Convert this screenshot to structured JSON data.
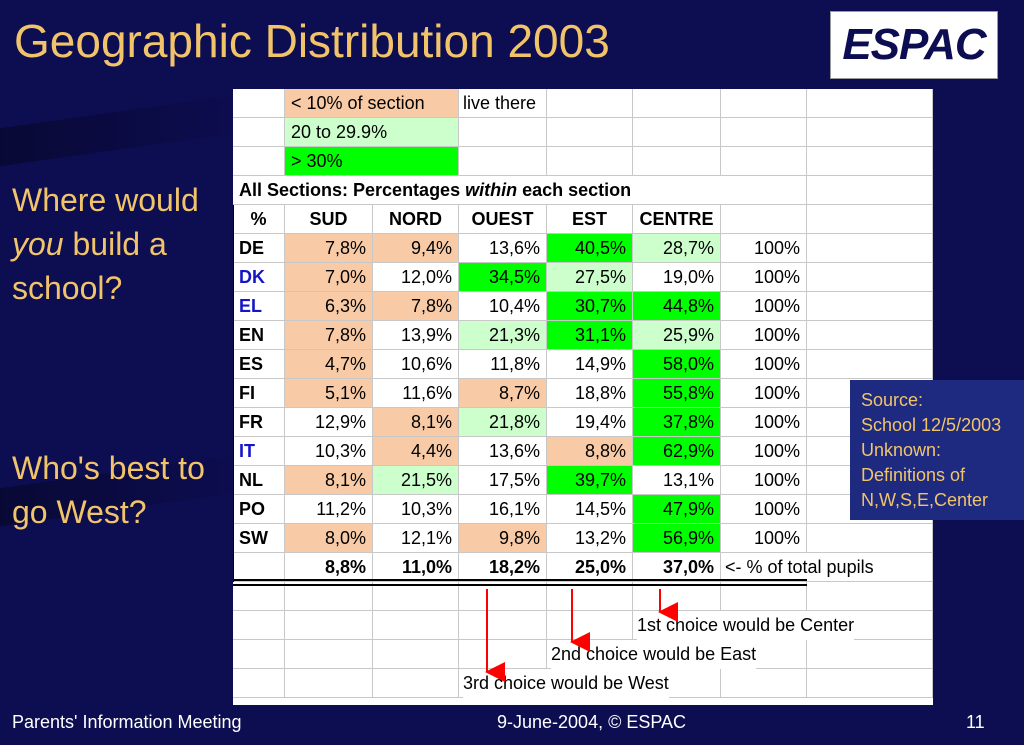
{
  "title": "Geographic Distribution 2003",
  "logo": "ESPAC",
  "question1": {
    "pre": "Where would ",
    "em": "you",
    "post": " build a school?"
  },
  "question2": "Who's best to go West?",
  "source": [
    "Source:",
    "School 12/5/2003",
    "Unknown:",
    "Definitions of",
    "N,W,S,E,Center"
  ],
  "legend": [
    {
      "text": "< 10% of section",
      "suffix": "live there",
      "color": "#f8cba6"
    },
    {
      "text": "20 to 29.9%",
      "color": "#ccffcc"
    },
    {
      "text": "> 30%",
      "color": "#00ff00"
    }
  ],
  "heading": {
    "pre": "All Sections: Percentages ",
    "em": "within",
    "post": " each section"
  },
  "columns": [
    "%",
    "SUD",
    "NORD",
    "OUEST",
    "EST",
    "CENTRE"
  ],
  "rows": [
    {
      "code": "DE",
      "blue": false,
      "values": [
        "7,8%",
        "9,4%",
        "13,6%",
        "40,5%",
        "28,7%"
      ],
      "total": "100%",
      "shade": [
        "p",
        "p",
        "",
        "g",
        "l"
      ]
    },
    {
      "code": "DK",
      "blue": true,
      "values": [
        "7,0%",
        "12,0%",
        "34,5%",
        "27,5%",
        "19,0%"
      ],
      "total": "100%",
      "shade": [
        "p",
        "",
        "g",
        "l",
        ""
      ]
    },
    {
      "code": "EL",
      "blue": true,
      "values": [
        "6,3%",
        "7,8%",
        "10,4%",
        "30,7%",
        "44,8%"
      ],
      "total": "100%",
      "shade": [
        "p",
        "p",
        "",
        "g",
        "g"
      ]
    },
    {
      "code": "EN",
      "blue": false,
      "values": [
        "7,8%",
        "13,9%",
        "21,3%",
        "31,1%",
        "25,9%"
      ],
      "total": "100%",
      "shade": [
        "p",
        "",
        "l",
        "g",
        "l"
      ]
    },
    {
      "code": "ES",
      "blue": false,
      "values": [
        "4,7%",
        "10,6%",
        "11,8%",
        "14,9%",
        "58,0%"
      ],
      "total": "100%",
      "shade": [
        "p",
        "",
        "",
        "",
        "g"
      ]
    },
    {
      "code": "FI",
      "blue": false,
      "values": [
        "5,1%",
        "11,6%",
        "8,7%",
        "18,8%",
        "55,8%"
      ],
      "total": "100%",
      "shade": [
        "p",
        "",
        "p",
        "",
        "g"
      ]
    },
    {
      "code": "FR",
      "blue": false,
      "values": [
        "12,9%",
        "8,1%",
        "21,8%",
        "19,4%",
        "37,8%"
      ],
      "total": "100%",
      "shade": [
        "",
        "p",
        "l",
        "",
        "g"
      ]
    },
    {
      "code": "IT",
      "blue": true,
      "values": [
        "10,3%",
        "4,4%",
        "13,6%",
        "8,8%",
        "62,9%"
      ],
      "total": "100%",
      "shade": [
        "",
        "p",
        "",
        "p",
        "g"
      ]
    },
    {
      "code": "NL",
      "blue": false,
      "values": [
        "8,1%",
        "21,5%",
        "17,5%",
        "39,7%",
        "13,1%"
      ],
      "total": "100%",
      "shade": [
        "p",
        "l",
        "",
        "g",
        ""
      ]
    },
    {
      "code": "PO",
      "blue": false,
      "values": [
        "11,2%",
        "10,3%",
        "16,1%",
        "14,5%",
        "47,9%"
      ],
      "total": "100%",
      "shade": [
        "",
        "",
        "",
        "",
        "g"
      ]
    },
    {
      "code": "SW",
      "blue": false,
      "values": [
        "8,0%",
        "12,1%",
        "9,8%",
        "13,2%",
        "56,9%"
      ],
      "total": "100%",
      "shade": [
        "p",
        "",
        "p",
        "",
        "g"
      ]
    }
  ],
  "totals": [
    "8,8%",
    "11,0%",
    "18,2%",
    "25,0%",
    "37,0%"
  ],
  "totals_note": "<- % of total pupils",
  "choices": [
    "1st choice would be Center",
    "2nd choice would be East",
    "3rd choice would be West"
  ],
  "footer": {
    "left": "Parents' Information Meeting",
    "middle": "9-June-2004, © ESPAC",
    "right": "11"
  },
  "colors": {
    "peach": "#f8cba6",
    "light_green": "#ccffcc",
    "green": "#00ff00",
    "text_gold": "#f2c46a",
    "background": "#0d0d52",
    "arrow": "#ff0000"
  }
}
